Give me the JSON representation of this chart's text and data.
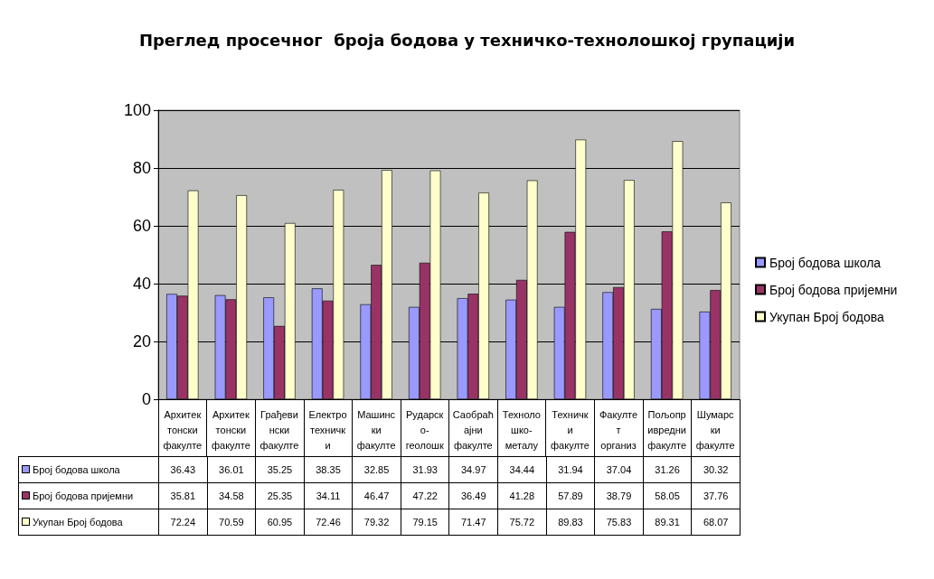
{
  "chart_data": {
    "type": "bar",
    "title": "Преглед просечног  броја бодова у техничко-технолошкој групацији",
    "categories": [
      "Архитек\nтонски\nфакулте",
      "Архитек\nтонски\nфакулте",
      "Грађеви\nнски\nфакулте",
      "Електро\nтехничк\nи",
      "Машинс\nки\nфакулте",
      "Рударск\nо-\nгеолошк",
      "Саобраћ\nајни\nфакулте",
      "Техноло\nшко-\nметалу",
      "Техничк\nи\nфакулте",
      "Факулте\nт\nорганиз",
      "Пољопр\nивредни\nфакулте",
      "Шумарс\nки\nфакулте"
    ],
    "series": [
      {
        "name": "Број бодова школа",
        "color": "#9999ff",
        "values": [
          36.43,
          36.01,
          35.25,
          38.35,
          32.85,
          31.93,
          34.97,
          34.44,
          31.94,
          37.04,
          31.26,
          30.32
        ]
      },
      {
        "name": "Број бодова пријемни",
        "color": "#993366",
        "values": [
          35.81,
          34.58,
          25.35,
          34.11,
          46.47,
          47.22,
          36.49,
          41.28,
          57.89,
          38.79,
          58.05,
          37.76
        ]
      },
      {
        "name": "Укупан Број бодова",
        "color": "#ffffcc",
        "values": [
          72.24,
          70.59,
          60.95,
          72.46,
          79.32,
          79.15,
          71.47,
          75.72,
          89.83,
          75.83,
          89.31,
          68.07
        ]
      }
    ],
    "ylim": [
      0,
      100
    ],
    "yticks": [
      0,
      20,
      40,
      60,
      80,
      100
    ],
    "grid": "y",
    "legend": "right",
    "data_labels": true
  }
}
